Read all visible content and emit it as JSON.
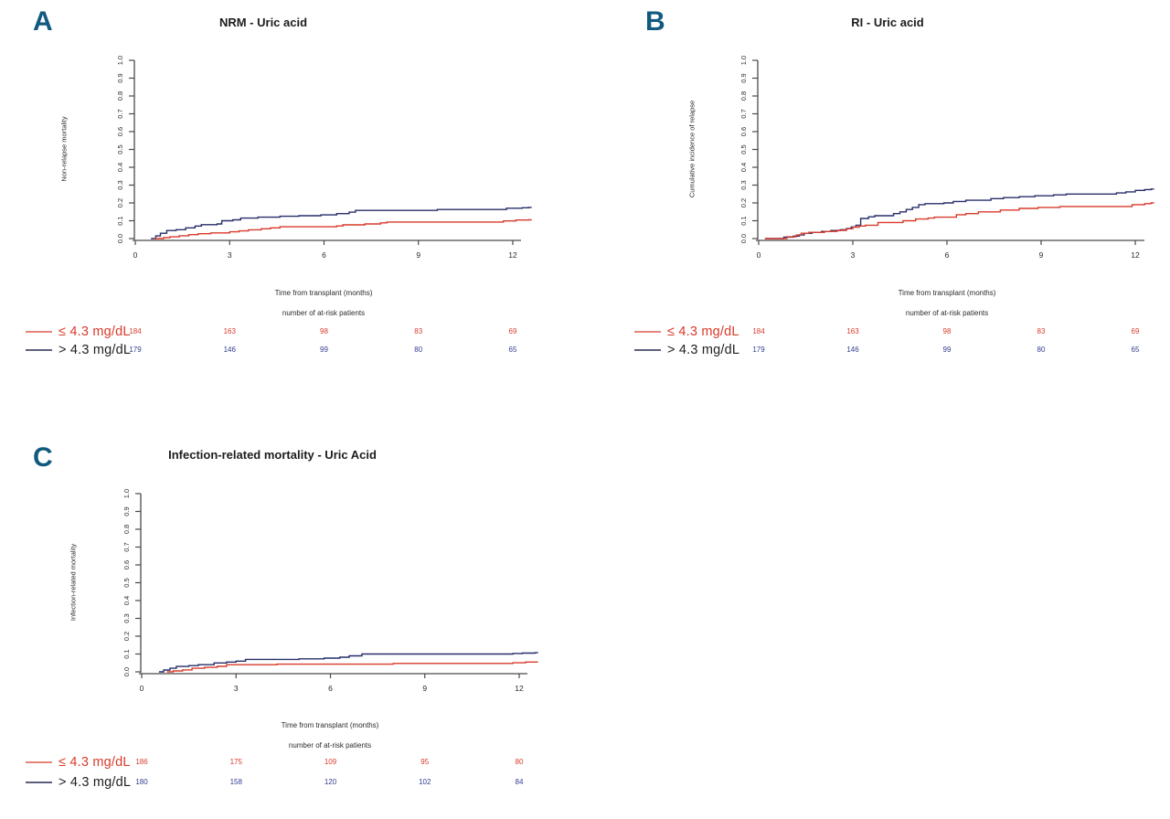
{
  "colors": {
    "panel_letter": "#12597f",
    "axis": "#4a4a4a",
    "red_series": "#d93a2b",
    "blue_series": "#272e68"
  },
  "chart_data": [
    {
      "panel": "A",
      "type": "line",
      "subtype": "cumulative-incidence-step",
      "title": "NRM - Uric acid",
      "xlabel": "Time from transplant (months)",
      "ylabel": "Non-relapse mortality",
      "at_risk_caption": "number of at-risk patients",
      "xlim": [
        0,
        12.6
      ],
      "ylim": [
        0,
        1.0
      ],
      "xticks": [
        "0",
        "3",
        "6",
        "9",
        "12"
      ],
      "yticks": [
        "0.0",
        "0.1",
        "0.2",
        "0.3",
        "0.4",
        "0.5",
        "0.6",
        "0.7",
        "0.8",
        "0.9",
        "1.0"
      ],
      "grid": false,
      "legend_position": "bottom-left",
      "series": [
        {
          "name": "≤ 4.3 mg/dL",
          "color": "#d93a2b",
          "legend_line_color": "#e4857a",
          "label_color": "#d93a2b",
          "points": [
            [
              0.6,
              0
            ],
            [
              0.9,
              0.005
            ],
            [
              1.1,
              0.01
            ],
            [
              1.4,
              0.016
            ],
            [
              1.7,
              0.022
            ],
            [
              2.0,
              0.027
            ],
            [
              2.4,
              0.032
            ],
            [
              3.0,
              0.038
            ],
            [
              3.3,
              0.043
            ],
            [
              3.6,
              0.049
            ],
            [
              4.0,
              0.055
            ],
            [
              4.3,
              0.06
            ],
            [
              4.6,
              0.066
            ],
            [
              6.4,
              0.071
            ],
            [
              6.6,
              0.077
            ],
            [
              7.3,
              0.082
            ],
            [
              7.8,
              0.088
            ],
            [
              8.0,
              0.093
            ],
            [
              11.7,
              0.099
            ],
            [
              12.1,
              0.104
            ],
            [
              12.5,
              0.105
            ]
          ]
        },
        {
          "name": "> 4.3 mg/dL",
          "color": "#272e68",
          "legend_line_color": "#5c5f7d",
          "label_color": "#1f1f1f",
          "points": [
            [
              0.5,
              0
            ],
            [
              0.65,
              0.015
            ],
            [
              0.8,
              0.03
            ],
            [
              1.0,
              0.045
            ],
            [
              1.3,
              0.05
            ],
            [
              1.6,
              0.06
            ],
            [
              1.9,
              0.07
            ],
            [
              2.1,
              0.078
            ],
            [
              2.6,
              0.082
            ],
            [
              2.75,
              0.1
            ],
            [
              3.1,
              0.105
            ],
            [
              3.35,
              0.115
            ],
            [
              3.9,
              0.12
            ],
            [
              4.6,
              0.125
            ],
            [
              5.2,
              0.128
            ],
            [
              5.9,
              0.133
            ],
            [
              6.4,
              0.14
            ],
            [
              6.8,
              0.148
            ],
            [
              7.0,
              0.158
            ],
            [
              9.6,
              0.163
            ],
            [
              11.8,
              0.17
            ],
            [
              12.3,
              0.173
            ],
            [
              12.5,
              0.175
            ]
          ]
        }
      ],
      "at_risk": {
        "times": [
          0,
          3,
          6,
          9,
          12
        ],
        "rows": [
          {
            "name": "≤ 4.3 mg/dL",
            "color": "#d93a2b",
            "counts": [
              "184",
              "163",
              "98",
              "83",
              "69"
            ]
          },
          {
            "name": "> 4.3 mg/dL",
            "color": "#333d8f",
            "counts": [
              "179",
              "146",
              "99",
              "80",
              "65"
            ]
          }
        ]
      }
    },
    {
      "panel": "B",
      "type": "line",
      "subtype": "cumulative-incidence-step",
      "title": "RI - Uric acid",
      "xlabel": "Time from transplant (months)",
      "ylabel": "Cumulative incidence of relapse",
      "at_risk_caption": "number of at-risk patients",
      "xlim": [
        0,
        12.6
      ],
      "ylim": [
        0,
        1.0
      ],
      "xticks": [
        "0",
        "3",
        "6",
        "9",
        "12"
      ],
      "yticks": [
        "0.0",
        "0.1",
        "0.2",
        "0.3",
        "0.4",
        "0.5",
        "0.6",
        "0.7",
        "0.8",
        "0.9",
        "1.0"
      ],
      "grid": false,
      "legend_position": "bottom-left",
      "series": [
        {
          "name": "≤ 4.3 mg/dL",
          "color": "#d93a2b",
          "legend_line_color": "#e4857a",
          "label_color": "#d93a2b",
          "points": [
            [
              0.2,
              0
            ],
            [
              0.9,
              0.01
            ],
            [
              1.2,
              0.02
            ],
            [
              1.35,
              0.03
            ],
            [
              1.6,
              0.035
            ],
            [
              2.1,
              0.04
            ],
            [
              2.5,
              0.046
            ],
            [
              2.8,
              0.055
            ],
            [
              3.0,
              0.064
            ],
            [
              3.2,
              0.07
            ],
            [
              3.4,
              0.075
            ],
            [
              3.8,
              0.09
            ],
            [
              4.6,
              0.1
            ],
            [
              5.0,
              0.11
            ],
            [
              5.4,
              0.115
            ],
            [
              5.6,
              0.12
            ],
            [
              6.3,
              0.134
            ],
            [
              6.6,
              0.14
            ],
            [
              7.0,
              0.15
            ],
            [
              7.7,
              0.16
            ],
            [
              8.3,
              0.169
            ],
            [
              8.9,
              0.175
            ],
            [
              9.6,
              0.18
            ],
            [
              11.9,
              0.19
            ],
            [
              12.3,
              0.196
            ],
            [
              12.5,
              0.2
            ]
          ]
        },
        {
          "name": "> 4.3 mg/dL",
          "color": "#272e68",
          "legend_line_color": "#5c5f7d",
          "label_color": "#1f1f1f",
          "points": [
            [
              0.2,
              0
            ],
            [
              0.8,
              0.008
            ],
            [
              1.1,
              0.014
            ],
            [
              1.3,
              0.02
            ],
            [
              1.45,
              0.03
            ],
            [
              1.7,
              0.035
            ],
            [
              2.0,
              0.04
            ],
            [
              2.3,
              0.045
            ],
            [
              2.6,
              0.05
            ],
            [
              2.8,
              0.057
            ],
            [
              2.95,
              0.065
            ],
            [
              3.1,
              0.075
            ],
            [
              3.25,
              0.113
            ],
            [
              3.5,
              0.122
            ],
            [
              3.7,
              0.128
            ],
            [
              4.3,
              0.14
            ],
            [
              4.5,
              0.15
            ],
            [
              4.7,
              0.163
            ],
            [
              4.9,
              0.175
            ],
            [
              5.1,
              0.19
            ],
            [
              5.3,
              0.196
            ],
            [
              5.9,
              0.2
            ],
            [
              6.2,
              0.208
            ],
            [
              6.6,
              0.215
            ],
            [
              7.4,
              0.224
            ],
            [
              7.8,
              0.23
            ],
            [
              8.3,
              0.235
            ],
            [
              8.8,
              0.24
            ],
            [
              9.4,
              0.245
            ],
            [
              9.8,
              0.25
            ],
            [
              11.4,
              0.256
            ],
            [
              11.7,
              0.262
            ],
            [
              12.0,
              0.27
            ],
            [
              12.3,
              0.275
            ],
            [
              12.5,
              0.278
            ]
          ]
        }
      ],
      "at_risk": {
        "times": [
          0,
          3,
          6,
          9,
          12
        ],
        "rows": [
          {
            "name": "≤ 4.3 mg/dL",
            "color": "#d93a2b",
            "counts": [
              "184",
              "163",
              "98",
              "83",
              "69"
            ]
          },
          {
            "name": "> 4.3 mg/dL",
            "color": "#333d8f",
            "counts": [
              "179",
              "146",
              "99",
              "80",
              "65"
            ]
          }
        ]
      }
    },
    {
      "panel": "C",
      "type": "line",
      "subtype": "cumulative-incidence-step",
      "title": "Infection-related mortality - Uric Acid",
      "xlabel": "Time from transplant (months)",
      "ylabel": "Infection-related mortality",
      "at_risk_caption": "number of at-risk patients",
      "xlim": [
        0,
        12.6
      ],
      "ylim": [
        0,
        1.0
      ],
      "xticks": [
        "0",
        "3",
        "6",
        "9",
        "12"
      ],
      "yticks": [
        "0.0",
        "0.1",
        "0.2",
        "0.3",
        "0.4",
        "0.5",
        "0.6",
        "0.7",
        "0.8",
        "0.9",
        "1.0"
      ],
      "grid": false,
      "legend_position": "bottom-left",
      "series": [
        {
          "name": "≤ 4.3 mg/dL",
          "color": "#d93a2b",
          "legend_line_color": "#e4857a",
          "label_color": "#d93a2b",
          "points": [
            [
              0.8,
              0
            ],
            [
              1.0,
              0.005
            ],
            [
              1.3,
              0.011
            ],
            [
              1.6,
              0.02
            ],
            [
              2.0,
              0.025
            ],
            [
              2.4,
              0.031
            ],
            [
              2.7,
              0.04
            ],
            [
              4.3,
              0.043
            ],
            [
              8.0,
              0.047
            ],
            [
              11.8,
              0.051
            ],
            [
              12.2,
              0.055
            ],
            [
              12.5,
              0.055
            ]
          ]
        },
        {
          "name": "> 4.3 mg/dL",
          "color": "#272e68",
          "legend_line_color": "#5c5f7d",
          "label_color": "#1f1f1f",
          "points": [
            [
              0.55,
              0
            ],
            [
              0.7,
              0.01
            ],
            [
              0.9,
              0.02
            ],
            [
              1.1,
              0.03
            ],
            [
              1.5,
              0.035
            ],
            [
              1.8,
              0.04
            ],
            [
              2.3,
              0.05
            ],
            [
              2.7,
              0.055
            ],
            [
              3.0,
              0.06
            ],
            [
              3.3,
              0.07
            ],
            [
              5.0,
              0.073
            ],
            [
              5.8,
              0.077
            ],
            [
              6.3,
              0.082
            ],
            [
              6.6,
              0.09
            ],
            [
              7.0,
              0.1
            ],
            [
              11.8,
              0.103
            ],
            [
              12.1,
              0.105
            ],
            [
              12.5,
              0.107
            ]
          ]
        }
      ],
      "at_risk": {
        "times": [
          0,
          3,
          6,
          9,
          12
        ],
        "rows": [
          {
            "name": "≤ 4.3 mg/dL",
            "color": "#d93a2b",
            "counts": [
              "186",
              "175",
              "109",
              "95",
              "80"
            ]
          },
          {
            "name": "> 4.3 mg/dL",
            "color": "#333d8f",
            "counts": [
              "180",
              "158",
              "120",
              "102",
              "84"
            ]
          }
        ]
      }
    }
  ]
}
